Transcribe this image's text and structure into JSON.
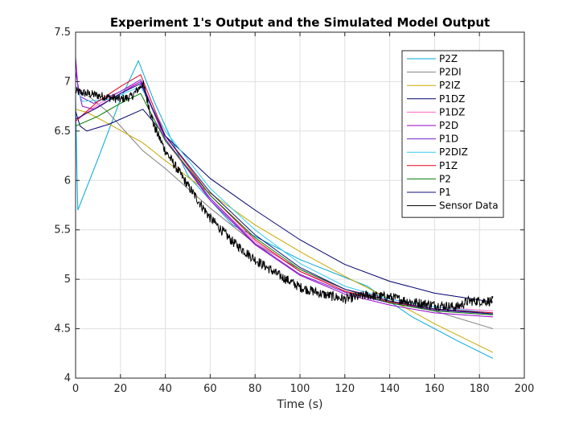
{
  "chart_data": {
    "type": "line",
    "title": "Experiment 1's Output and the Simulated Model Output",
    "xlabel": "Time (s)",
    "ylabel": "",
    "xlim": [
      0,
      200
    ],
    "ylim": [
      4,
      7.5
    ],
    "xticks": [
      "0",
      "20",
      "40",
      "60",
      "80",
      "100",
      "120",
      "140",
      "160",
      "180",
      "200"
    ],
    "yticks": [
      "4",
      "4.5",
      "5",
      "5.5",
      "6",
      "6.5",
      "7",
      "7.5"
    ],
    "grid": true,
    "legend_position": "top-right",
    "series": [
      {
        "name": "P2Z",
        "color": "#00a8d8",
        "points": [
          [
            0,
            6.85
          ],
          [
            0.5,
            6.2
          ],
          [
            1,
            5.7
          ],
          [
            10,
            6.22
          ],
          [
            20,
            6.82
          ],
          [
            28,
            7.21
          ],
          [
            35,
            6.8
          ],
          [
            50,
            6.05
          ],
          [
            70,
            5.55
          ],
          [
            100,
            5.2
          ],
          [
            130,
            4.93
          ],
          [
            150,
            4.62
          ],
          [
            170,
            4.38
          ],
          [
            186,
            4.2
          ]
        ]
      },
      {
        "name": "P2DI",
        "color": "#7f7f7f",
        "points": [
          [
            0,
            6.95
          ],
          [
            2,
            6.9
          ],
          [
            6,
            6.85
          ],
          [
            14,
            6.7
          ],
          [
            20,
            6.55
          ],
          [
            26,
            6.4
          ],
          [
            30,
            6.3
          ],
          [
            40,
            6.12
          ],
          [
            60,
            5.72
          ],
          [
            80,
            5.36
          ],
          [
            100,
            5.1
          ],
          [
            120,
            4.9
          ],
          [
            140,
            4.78
          ],
          [
            160,
            4.68
          ],
          [
            186,
            4.5
          ]
        ]
      },
      {
        "name": "P2IZ",
        "color": "#c9a800",
        "points": [
          [
            0,
            6.72
          ],
          [
            5,
            6.69
          ],
          [
            15,
            6.57
          ],
          [
            30,
            6.38
          ],
          [
            40,
            6.2
          ],
          [
            60,
            5.87
          ],
          [
            80,
            5.55
          ],
          [
            100,
            5.28
          ],
          [
            120,
            5.03
          ],
          [
            140,
            4.8
          ],
          [
            160,
            4.55
          ],
          [
            186,
            4.26
          ]
        ]
      },
      {
        "name": "P1DZ",
        "color": "#00006e",
        "points": [
          [
            0,
            6.7
          ],
          [
            2,
            6.55
          ],
          [
            5,
            6.5
          ],
          [
            15,
            6.57
          ],
          [
            30,
            6.72
          ],
          [
            40,
            6.45
          ],
          [
            60,
            6.02
          ],
          [
            80,
            5.7
          ],
          [
            100,
            5.4
          ],
          [
            120,
            5.15
          ],
          [
            140,
            4.98
          ],
          [
            160,
            4.86
          ],
          [
            186,
            4.77
          ]
        ]
      },
      {
        "name": "P1DZ",
        "color": "#ff66cc",
        "points": [
          [
            0,
            6.6
          ],
          [
            10,
            6.77
          ],
          [
            20,
            6.9
          ],
          [
            29,
            7.0
          ],
          [
            40,
            6.4
          ],
          [
            60,
            5.82
          ],
          [
            80,
            5.38
          ],
          [
            100,
            5.08
          ],
          [
            120,
            4.9
          ],
          [
            140,
            4.8
          ],
          [
            160,
            4.72
          ],
          [
            186,
            4.68
          ]
        ]
      },
      {
        "name": "P2D",
        "color": "#9900cc",
        "points": [
          [
            0,
            7.25
          ],
          [
            1,
            6.95
          ],
          [
            3,
            6.75
          ],
          [
            8,
            6.72
          ],
          [
            20,
            6.88
          ],
          [
            29,
            7.0
          ],
          [
            40,
            6.42
          ],
          [
            60,
            5.8
          ],
          [
            80,
            5.35
          ],
          [
            100,
            5.04
          ],
          [
            120,
            4.85
          ],
          [
            140,
            4.74
          ],
          [
            160,
            4.66
          ],
          [
            186,
            4.62
          ]
        ]
      },
      {
        "name": "P1D",
        "color": "#7722cc",
        "points": [
          [
            0,
            7.1
          ],
          [
            2,
            6.85
          ],
          [
            8,
            6.78
          ],
          [
            20,
            6.9
          ],
          [
            29,
            7.02
          ],
          [
            40,
            6.42
          ],
          [
            60,
            5.82
          ],
          [
            80,
            5.36
          ],
          [
            100,
            5.05
          ],
          [
            120,
            4.87
          ],
          [
            140,
            4.76
          ],
          [
            160,
            4.69
          ],
          [
            186,
            4.65
          ]
        ]
      },
      {
        "name": "P2DIZ",
        "color": "#33ccee",
        "points": [
          [
            0,
            6.95
          ],
          [
            3,
            6.8
          ],
          [
            15,
            6.82
          ],
          [
            29,
            6.95
          ],
          [
            40,
            6.5
          ],
          [
            60,
            5.92
          ],
          [
            80,
            5.5
          ],
          [
            100,
            5.16
          ],
          [
            120,
            4.93
          ],
          [
            140,
            4.8
          ],
          [
            160,
            4.72
          ],
          [
            186,
            4.66
          ]
        ]
      },
      {
        "name": "P1Z",
        "color": "#e0001b",
        "points": [
          [
            0,
            6.6
          ],
          [
            10,
            6.8
          ],
          [
            20,
            6.95
          ],
          [
            29,
            7.07
          ],
          [
            40,
            6.45
          ],
          [
            60,
            5.85
          ],
          [
            80,
            5.4
          ],
          [
            100,
            5.08
          ],
          [
            120,
            4.88
          ],
          [
            140,
            4.77
          ],
          [
            160,
            4.7
          ],
          [
            186,
            4.66
          ]
        ]
      },
      {
        "name": "P2",
        "color": "#007a00",
        "points": [
          [
            0,
            6.55
          ],
          [
            10,
            6.65
          ],
          [
            20,
            6.78
          ],
          [
            29,
            6.88
          ],
          [
            40,
            6.4
          ],
          [
            60,
            5.85
          ],
          [
            80,
            5.42
          ],
          [
            100,
            5.1
          ],
          [
            120,
            4.9
          ],
          [
            140,
            4.76
          ],
          [
            160,
            4.68
          ],
          [
            186,
            4.64
          ]
        ]
      },
      {
        "name": "P1",
        "color": "#11117a",
        "points": [
          [
            0,
            6.62
          ],
          [
            10,
            6.74
          ],
          [
            20,
            6.88
          ],
          [
            29,
            6.98
          ],
          [
            40,
            6.45
          ],
          [
            60,
            5.88
          ],
          [
            80,
            5.45
          ],
          [
            100,
            5.12
          ],
          [
            120,
            4.9
          ],
          [
            140,
            4.78
          ],
          [
            160,
            4.7
          ],
          [
            186,
            4.65
          ]
        ]
      },
      {
        "name": "Sensor Data",
        "color": "#000000",
        "noise": true,
        "points": [
          [
            0,
            6.9
          ],
          [
            10,
            6.86
          ],
          [
            20,
            6.82
          ],
          [
            25,
            6.85
          ],
          [
            30,
            6.98
          ],
          [
            35,
            6.55
          ],
          [
            40,
            6.3
          ],
          [
            50,
            5.95
          ],
          [
            60,
            5.62
          ],
          [
            70,
            5.38
          ],
          [
            80,
            5.2
          ],
          [
            90,
            5.05
          ],
          [
            100,
            4.92
          ],
          [
            110,
            4.85
          ],
          [
            120,
            4.8
          ],
          [
            130,
            4.84
          ],
          [
            140,
            4.82
          ],
          [
            150,
            4.77
          ],
          [
            160,
            4.74
          ],
          [
            170,
            4.72
          ],
          [
            175,
            4.78
          ],
          [
            186,
            4.78
          ]
        ]
      }
    ]
  }
}
